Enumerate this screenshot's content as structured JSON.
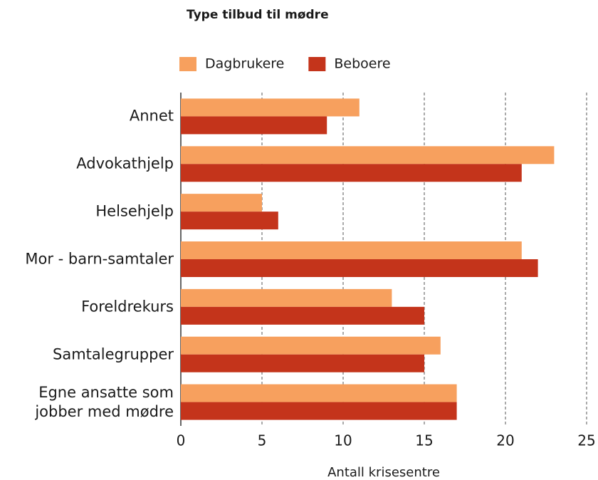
{
  "chart_data": {
    "type": "bar",
    "orientation": "horizontal",
    "title": "Type tilbud til mødre",
    "x_label": "Antall krisesentre",
    "categories": [
      "Annet",
      "Advokathjelp",
      "Helsehjelp",
      "Mor - barn-samtaler",
      "Foreldrekurs",
      "Samtalegrupper",
      "Egne ansatte som jobber med mødre"
    ],
    "series": [
      {
        "name": "Dagbrukere",
        "color": "#f7a05e",
        "values": [
          11,
          23,
          5,
          21,
          13,
          16,
          17
        ]
      },
      {
        "name": "Beboere",
        "color": "#c4341b",
        "values": [
          9,
          21,
          6,
          22,
          15,
          15,
          17
        ]
      }
    ],
    "xlim": [
      0,
      25
    ],
    "xticks": [
      0,
      5,
      10,
      15,
      20,
      25
    ],
    "grid": true,
    "legend": "top"
  }
}
